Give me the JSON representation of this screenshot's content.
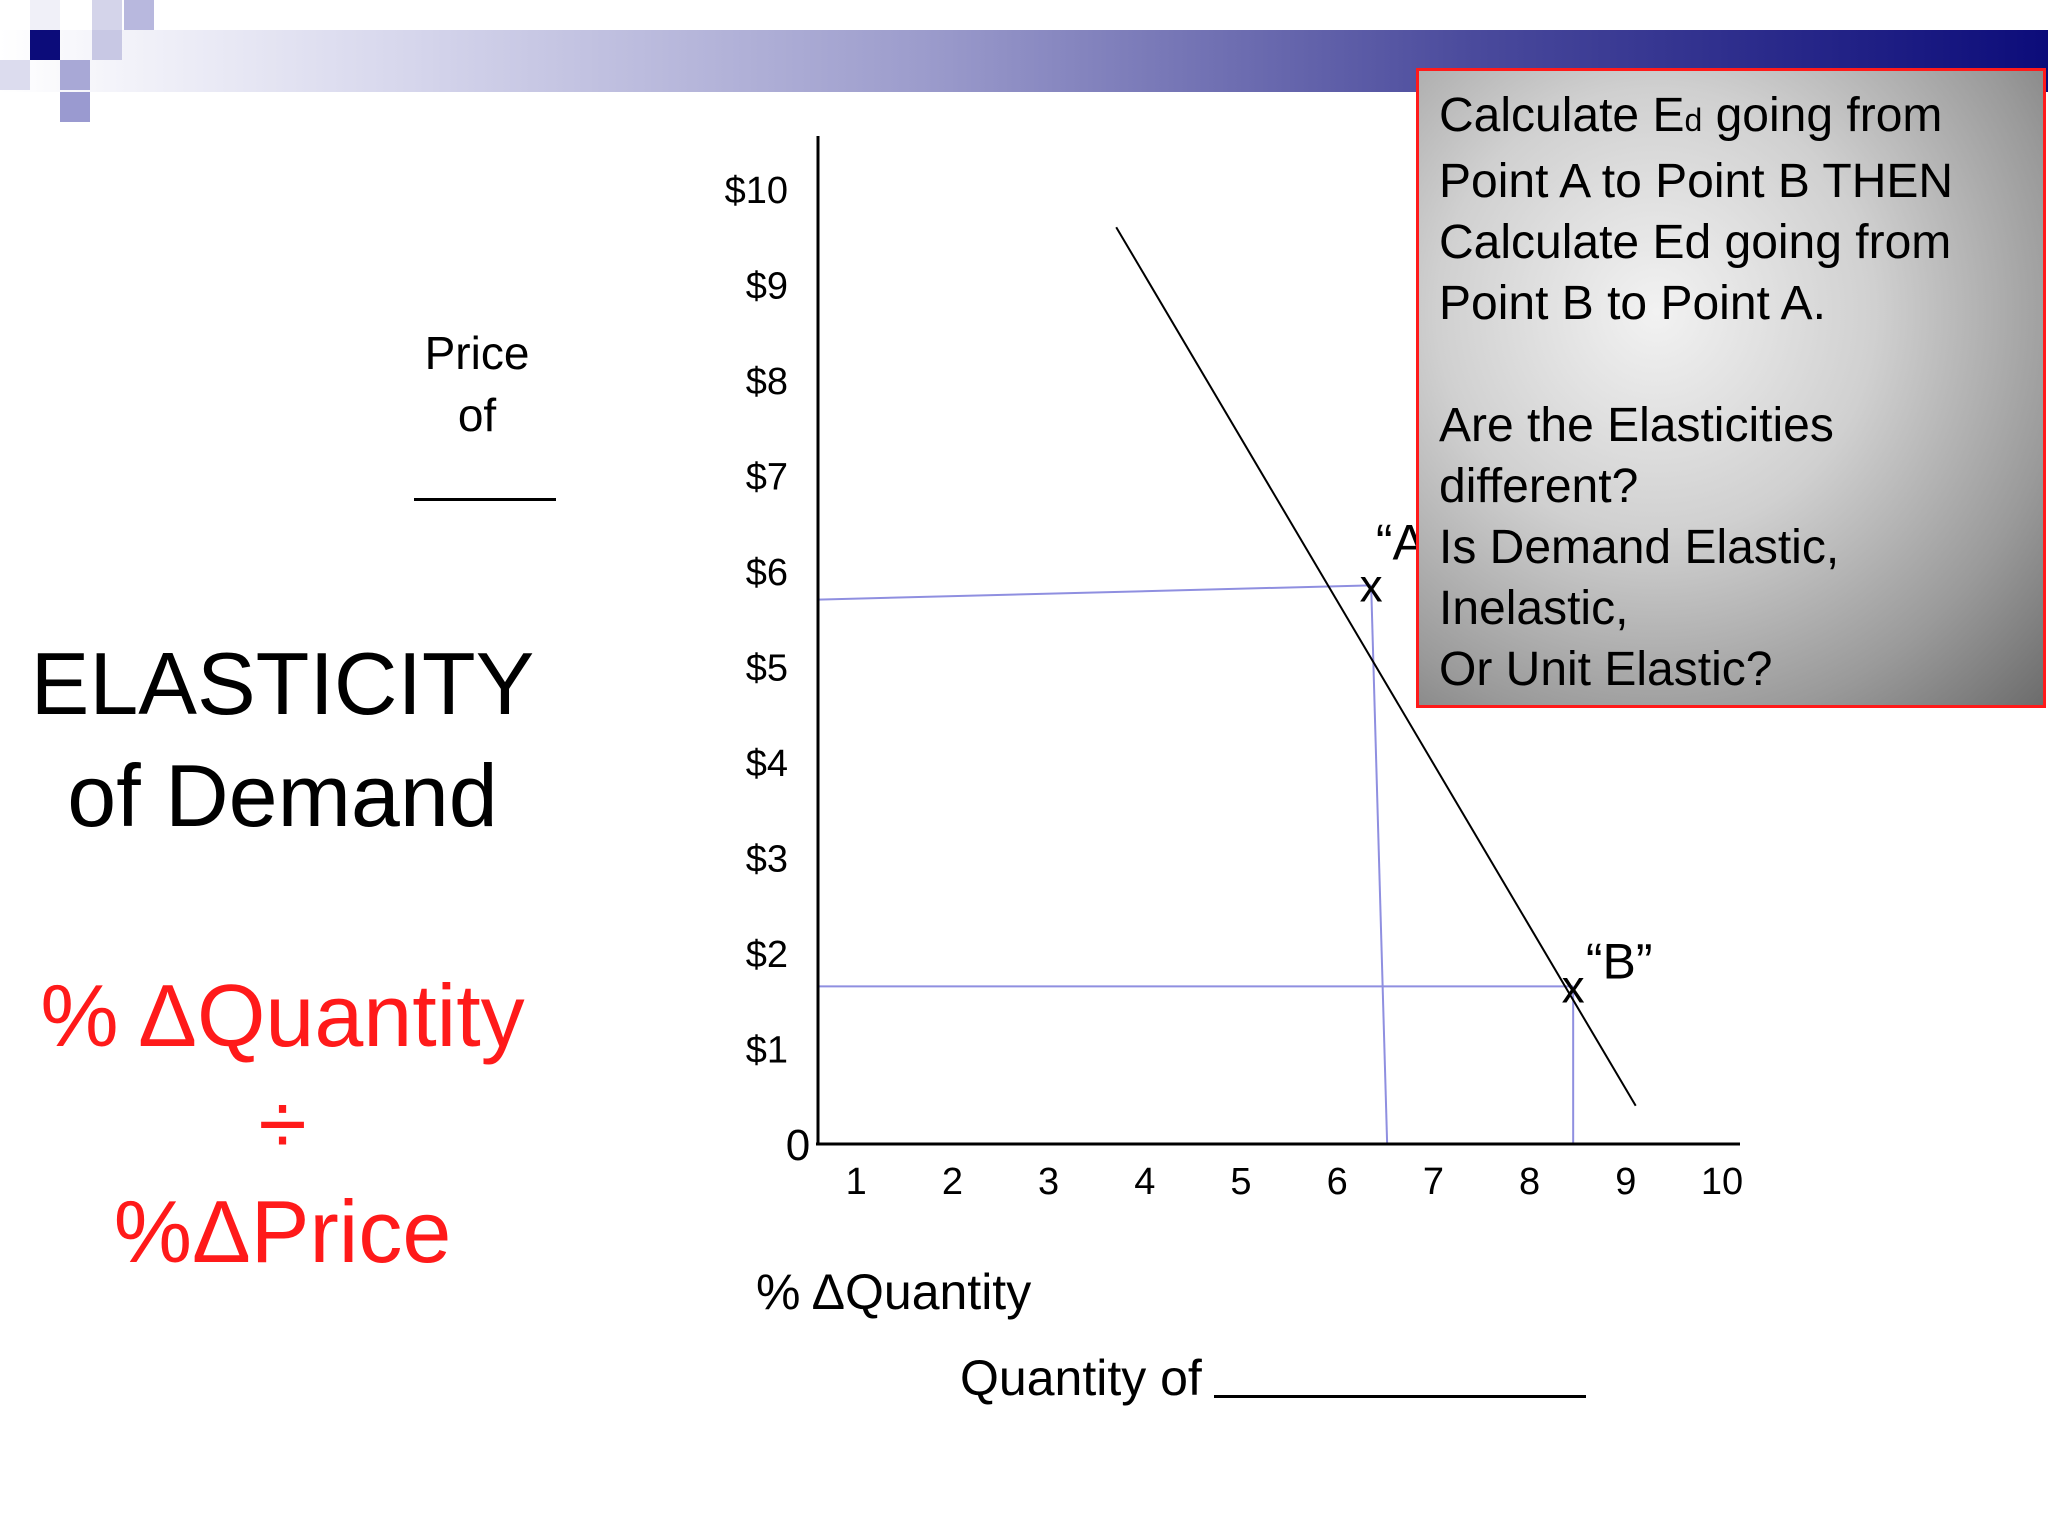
{
  "side": {
    "title_line1": "ELASTICITY",
    "title_line2": "of Demand",
    "formula_line1": "% ΔQuantity",
    "formula_line2": "÷",
    "formula_line3": "%ΔPrice"
  },
  "axis_text": {
    "price_line1": "Price",
    "price_line2": "of",
    "pct_quantity": "% ΔQuantity",
    "quantity_of": "Quantity of"
  },
  "callout": {
    "line1_pre": "Calculate E",
    "line1_sub": "d",
    "line1_post": " going from",
    "line2": "Point  A to Point B THEN",
    "line3": "Calculate Ed going from",
    "line4": "Point B to Point  A.",
    "line5": "Are the Elasticities",
    "line6": "different?",
    "line7": "Is  Demand Elastic,",
    "line8": "Inelastic,",
    "line9": "Or Unit Elastic?"
  },
  "colors": {
    "accent_red": "#ff1a1a",
    "guide_line": "#8f8fe0",
    "banner_dark": "#0c0c7a"
  },
  "chart_data": {
    "type": "line",
    "x_ticks": [
      "1",
      "2",
      "3",
      "4",
      "5",
      "6",
      "7",
      "8",
      "9",
      "10"
    ],
    "y_ticks": [
      "$1",
      "$2",
      "$3",
      "$4",
      "$5",
      "$6",
      "$7",
      "$8",
      "$9",
      "$10"
    ],
    "origin_label": "0",
    "xlim": [
      0,
      10
    ],
    "ylim": [
      0,
      10
    ],
    "grid": false,
    "demand_line": {
      "x": [
        3.1,
        8.5
      ],
      "y": [
        9.6,
        0.4
      ]
    },
    "points": [
      {
        "label": "“A”",
        "marker": "x",
        "x": 5.75,
        "y": 5.85
      },
      {
        "label": "“B”",
        "marker": "x",
        "x": 7.85,
        "y": 1.65
      }
    ]
  }
}
